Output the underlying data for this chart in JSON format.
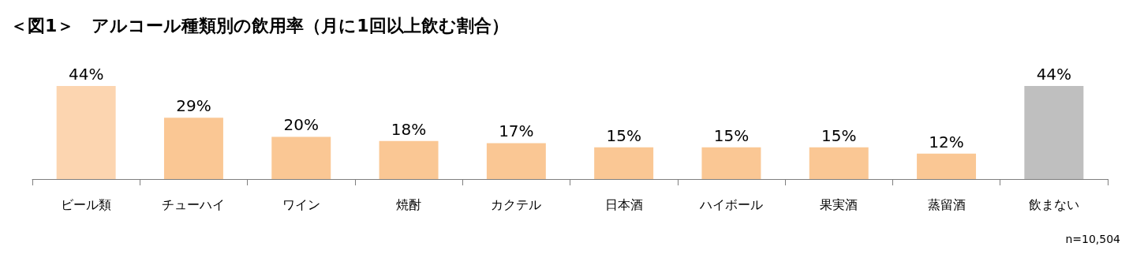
{
  "chart_data": {
    "type": "bar",
    "title": "＜図1＞　アルコール種類別の飲用率（月に1回以上飲む割合）",
    "categories": [
      "ビール類",
      "チューハイ",
      "ワイン",
      "焼酎",
      "カクテル",
      "日本酒",
      "ハイボール",
      "果実酒",
      "蒸留酒",
      "飲まない"
    ],
    "values": [
      44,
      29,
      20,
      18,
      17,
      15,
      15,
      15,
      12,
      44
    ],
    "value_labels": [
      "44%",
      "29%",
      "20%",
      "18%",
      "17%",
      "15%",
      "15%",
      "15%",
      "12%",
      "44%"
    ],
    "colors": [
      "#fcd5b0",
      "#fac794",
      "#fac794",
      "#fac794",
      "#fac794",
      "#fac794",
      "#fac794",
      "#fac794",
      "#fac794",
      "#bfbfbf"
    ],
    "tick_labels": "x",
    "annotations": [
      "n=10,504"
    ]
  }
}
